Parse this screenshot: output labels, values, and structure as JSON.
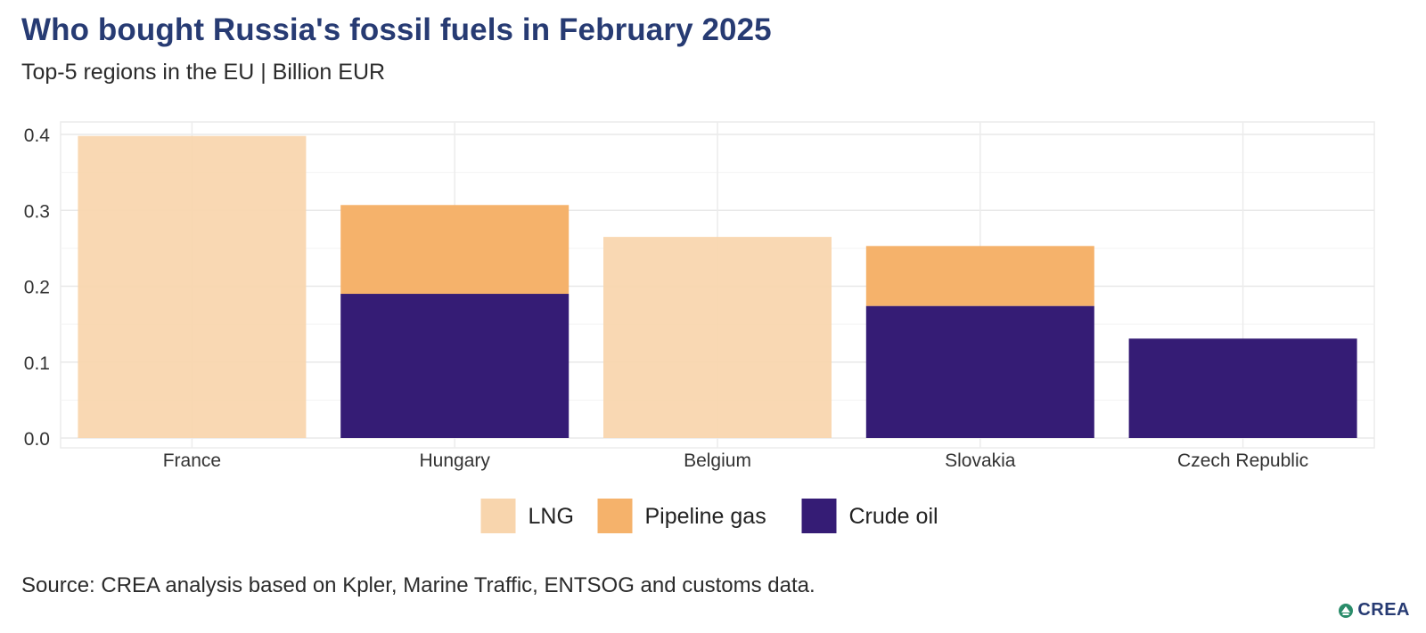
{
  "header": {
    "title": "Who bought Russia's fossil fuels in February 2025",
    "subtitle": "Top-5 regions in the EU | Billion EUR"
  },
  "footer": {
    "source": "Source: CREA analysis based on Kpler, Marine Traffic, ENTSOG and customs data.",
    "logo_text": "CREA"
  },
  "chart_data": {
    "type": "bar",
    "stacked": true,
    "title": "Who bought Russia's fossil fuels in February 2025",
    "subtitle": "Top-5 regions in the EU | Billion EUR",
    "categories": [
      "France",
      "Hungary",
      "Belgium",
      "Slovakia",
      "Czech Republic"
    ],
    "series": [
      {
        "name": "LNG",
        "color": "#f8d5ad",
        "values": [
          0.398,
          0,
          0.265,
          0,
          0
        ]
      },
      {
        "name": "Pipeline gas",
        "color": "#f5b26b",
        "values": [
          0,
          0.117,
          0,
          0.079,
          0
        ]
      },
      {
        "name": "Crude oil",
        "color": "#351c75",
        "values": [
          0,
          0.19,
          0,
          0.174,
          0.131
        ]
      }
    ],
    "ylim": [
      0,
      0.4
    ],
    "yticks": [
      "0.0",
      "0.1",
      "0.2",
      "0.3",
      "0.4"
    ],
    "ytick_values": [
      0,
      0.1,
      0.2,
      0.3,
      0.4
    ],
    "grid": true,
    "legend_position": "bottom"
  }
}
